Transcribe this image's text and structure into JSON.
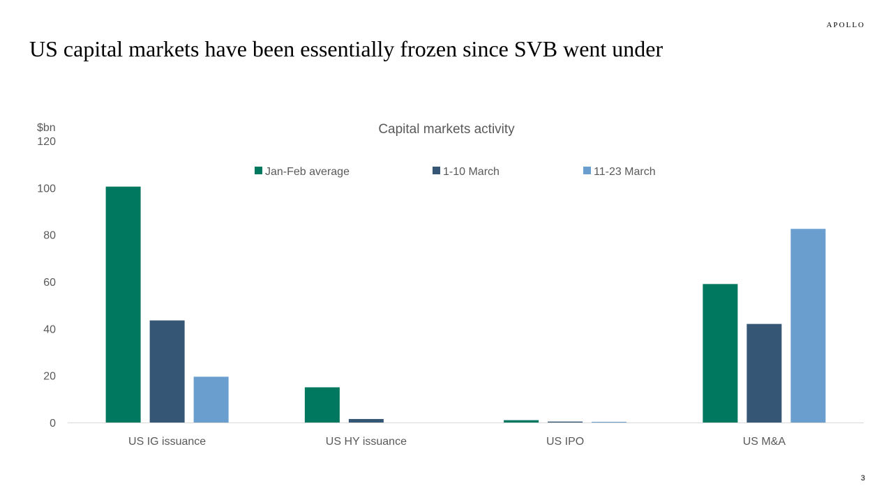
{
  "header": {
    "brand": "APOLLO",
    "title": "US capital markets have been essentially frozen since SVB went under"
  },
  "footer": {
    "page_number": "3"
  },
  "chart_data": {
    "type": "bar",
    "title": "Capital markets activity",
    "ylabel": "$bn",
    "xlabel": "",
    "ylim": [
      0,
      120
    ],
    "yticks": [
      0,
      20,
      40,
      60,
      80,
      100,
      120
    ],
    "categories": [
      "US IG issuance",
      "US HY issuance",
      "US IPO",
      "US M&A"
    ],
    "series": [
      {
        "name": "Jan-Feb average",
        "color": "#00785F",
        "values": [
          100.5,
          15,
          1,
          59
        ]
      },
      {
        "name": "1-10 March",
        "color": "#365675",
        "values": [
          43.5,
          1.5,
          0.4,
          42
        ]
      },
      {
        "name": "11-23 March",
        "color": "#6A9ECF",
        "values": [
          19.5,
          0,
          0.3,
          82.5
        ]
      }
    ],
    "legend_position": "top",
    "grid": false
  }
}
